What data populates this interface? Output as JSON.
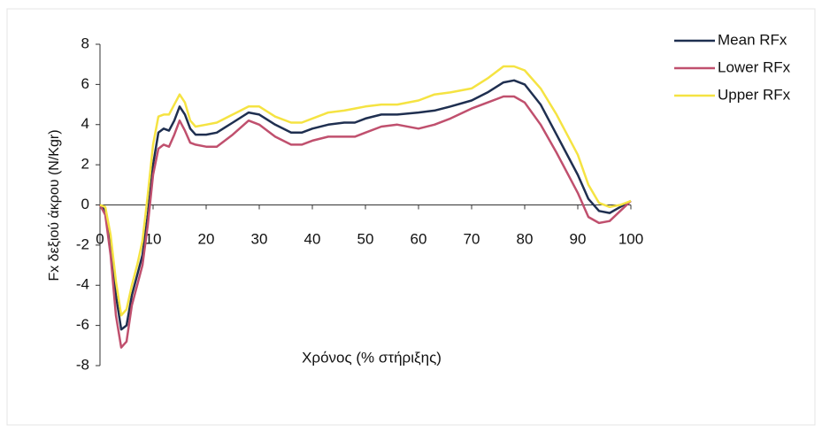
{
  "chart_data": {
    "type": "line",
    "x_label": "Χρόνος (% στήριξης)",
    "y_label": "Fx δεξιού άκρου (N/Kgr)",
    "x": [
      0,
      1,
      2,
      3,
      4,
      5,
      6,
      7,
      8,
      9,
      10,
      11,
      12,
      13,
      14,
      15,
      16,
      17,
      18,
      20,
      22,
      25,
      28,
      30,
      33,
      36,
      38,
      40,
      43,
      46,
      48,
      50,
      53,
      56,
      60,
      63,
      66,
      70,
      73,
      76,
      78,
      80,
      83,
      86,
      90,
      92,
      94,
      96,
      98,
      100
    ],
    "series": [
      {
        "name": "Mean RFx",
        "color": "#1f2f50",
        "values": [
          0,
          -0.3,
          -2,
          -4.5,
          -6.2,
          -6.0,
          -4.5,
          -3.5,
          -2.5,
          -0.5,
          2,
          3.6,
          3.8,
          3.7,
          4.2,
          4.9,
          4.5,
          3.8,
          3.5,
          3.5,
          3.6,
          4.1,
          4.6,
          4.5,
          4.0,
          3.6,
          3.6,
          3.8,
          4.0,
          4.1,
          4.1,
          4.3,
          4.5,
          4.5,
          4.6,
          4.7,
          4.9,
          5.2,
          5.6,
          6.1,
          6.2,
          6.0,
          5.0,
          3.5,
          1.5,
          0.3,
          -0.3,
          -0.4,
          -0.1,
          0.2
        ]
      },
      {
        "name": "Lower RFx",
        "color": "#c0506e",
        "values": [
          0,
          -0.5,
          -2.5,
          -5.5,
          -7.1,
          -6.8,
          -5,
          -4,
          -3,
          -1,
          1.5,
          2.8,
          3.0,
          2.9,
          3.5,
          4.2,
          3.7,
          3.1,
          3.0,
          2.9,
          2.9,
          3.5,
          4.2,
          4.0,
          3.4,
          3.0,
          3.0,
          3.2,
          3.4,
          3.4,
          3.4,
          3.6,
          3.9,
          4.0,
          3.8,
          4.0,
          4.3,
          4.8,
          5.1,
          5.4,
          5.4,
          5.1,
          4.0,
          2.6,
          0.6,
          -0.6,
          -0.9,
          -0.8,
          -0.3,
          0.2
        ]
      },
      {
        "name": "Upper RFx",
        "color": "#f5e342",
        "values": [
          0,
          -0.1,
          -1.5,
          -3.8,
          -5.5,
          -5.2,
          -4.0,
          -3.0,
          -1.8,
          0.5,
          3.0,
          4.4,
          4.5,
          4.5,
          5.0,
          5.5,
          5.1,
          4.2,
          3.9,
          4.0,
          4.1,
          4.5,
          4.9,
          4.9,
          4.4,
          4.1,
          4.1,
          4.3,
          4.6,
          4.7,
          4.8,
          4.9,
          5.0,
          5.0,
          5.2,
          5.5,
          5.6,
          5.8,
          6.3,
          6.9,
          6.9,
          6.7,
          5.8,
          4.5,
          2.5,
          1.0,
          0.1,
          -0.1,
          0.0,
          0.2
        ]
      }
    ],
    "xlim": [
      0,
      100
    ],
    "xticks": [
      0,
      10,
      20,
      30,
      40,
      50,
      60,
      70,
      80,
      90,
      100
    ],
    "ylim": [
      -8,
      8
    ],
    "yticks": [
      -8,
      -6,
      -4,
      -2,
      0,
      2,
      4,
      6,
      8
    ]
  }
}
